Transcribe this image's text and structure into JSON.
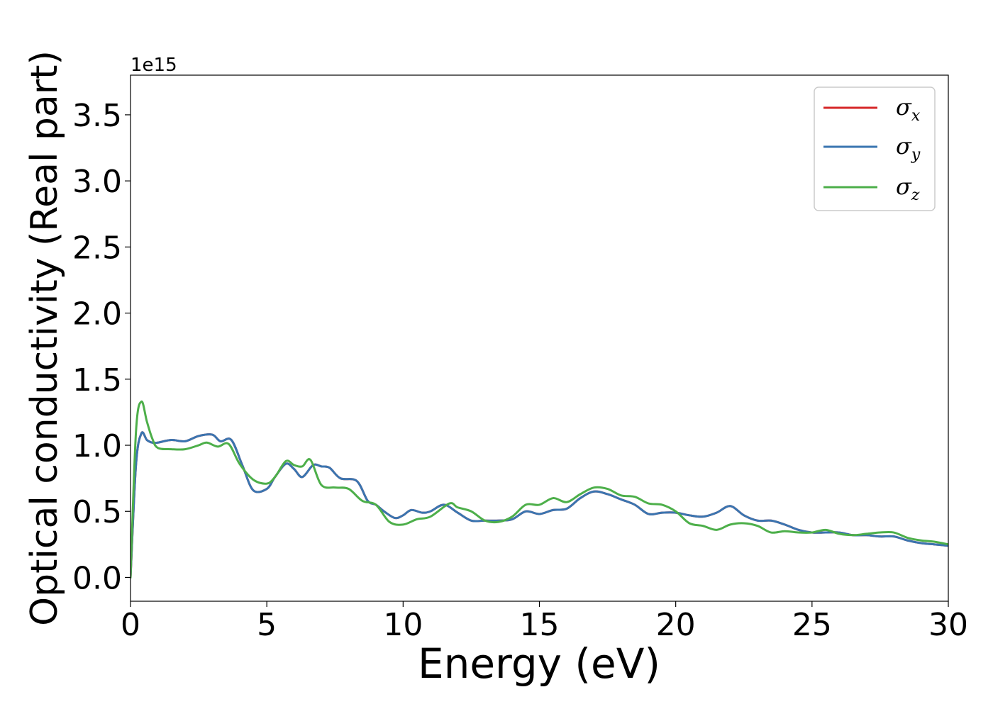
{
  "chart_data": {
    "type": "line",
    "title": "",
    "xlabel": "Energy (eV)",
    "ylabel": "Optical conductivity (Real part)",
    "y_offset_label": "1e15",
    "xlim": [
      0,
      30
    ],
    "ylim": [
      -0.18,
      3.8
    ],
    "grid": false,
    "legend_position": "top-right",
    "x_ticks": [
      0,
      5,
      10,
      15,
      20,
      25,
      30
    ],
    "x_tick_labels": [
      "0",
      "5",
      "10",
      "15",
      "20",
      "25",
      "30"
    ],
    "y_ticks": [
      0.0,
      0.5,
      1.0,
      1.5,
      2.0,
      2.5,
      3.0,
      3.5
    ],
    "y_tick_labels": [
      "0.0",
      "0.5",
      "1.0",
      "1.5",
      "2.0",
      "2.5",
      "3.0",
      "3.5"
    ],
    "series": [
      {
        "name": "σx",
        "symbol": "σ",
        "subscript": "x",
        "color": "#d62728",
        "x": [
          0,
          0.2,
          0.4,
          0.6,
          0.8,
          1,
          1.5,
          2,
          2.5,
          3,
          3.3,
          3.7,
          4.1,
          4.5,
          5,
          5.3,
          5.7,
          6,
          6.3,
          6.7,
          7,
          7.3,
          7.7,
          8.3,
          8.7,
          9,
          9.3,
          9.7,
          10,
          10.3,
          10.7,
          11,
          11.5,
          12,
          12.5,
          13,
          13.5,
          14,
          14.5,
          15,
          15.5,
          16,
          16.5,
          17,
          17.5,
          18,
          18.5,
          19,
          19.5,
          20,
          20.5,
          21,
          21.5,
          22,
          22.5,
          23,
          23.5,
          24,
          24.5,
          25,
          25.5,
          26,
          26.5,
          27,
          27.5,
          28,
          28.5,
          29,
          29.5,
          30
        ],
        "y": [
          0,
          0.85,
          1.09,
          1.04,
          1.02,
          1.02,
          1.04,
          1.03,
          1.07,
          1.08,
          1.03,
          1.04,
          0.85,
          0.66,
          0.67,
          0.76,
          0.86,
          0.82,
          0.76,
          0.85,
          0.84,
          0.83,
          0.75,
          0.73,
          0.58,
          0.55,
          0.5,
          0.45,
          0.47,
          0.51,
          0.49,
          0.5,
          0.55,
          0.49,
          0.43,
          0.43,
          0.43,
          0.44,
          0.5,
          0.48,
          0.51,
          0.52,
          0.6,
          0.65,
          0.63,
          0.59,
          0.55,
          0.48,
          0.49,
          0.49,
          0.47,
          0.46,
          0.49,
          0.54,
          0.47,
          0.43,
          0.43,
          0.4,
          0.36,
          0.34,
          0.34,
          0.34,
          0.32,
          0.32,
          0.31,
          0.31,
          0.28,
          0.26,
          0.25,
          0.24
        ]
      },
      {
        "name": "σy",
        "symbol": "σ",
        "subscript": "y",
        "color": "#3a75b0",
        "x": [
          0,
          0.2,
          0.4,
          0.6,
          0.8,
          1,
          1.5,
          2,
          2.5,
          3,
          3.3,
          3.7,
          4.1,
          4.5,
          5,
          5.3,
          5.7,
          6,
          6.3,
          6.7,
          7,
          7.3,
          7.7,
          8.3,
          8.7,
          9,
          9.3,
          9.7,
          10,
          10.3,
          10.7,
          11,
          11.5,
          12,
          12.5,
          13,
          13.5,
          14,
          14.5,
          15,
          15.5,
          16,
          16.5,
          17,
          17.5,
          18,
          18.5,
          19,
          19.5,
          20,
          20.5,
          21,
          21.5,
          22,
          22.5,
          23,
          23.5,
          24,
          24.5,
          25,
          25.5,
          26,
          26.5,
          27,
          27.5,
          28,
          28.5,
          29,
          29.5,
          30
        ],
        "y": [
          0,
          0.85,
          1.09,
          1.04,
          1.02,
          1.02,
          1.04,
          1.03,
          1.07,
          1.08,
          1.03,
          1.04,
          0.85,
          0.66,
          0.67,
          0.76,
          0.86,
          0.82,
          0.76,
          0.85,
          0.84,
          0.83,
          0.75,
          0.73,
          0.58,
          0.55,
          0.5,
          0.45,
          0.47,
          0.51,
          0.49,
          0.5,
          0.55,
          0.49,
          0.43,
          0.43,
          0.43,
          0.44,
          0.5,
          0.48,
          0.51,
          0.52,
          0.6,
          0.65,
          0.63,
          0.59,
          0.55,
          0.48,
          0.49,
          0.49,
          0.47,
          0.46,
          0.49,
          0.54,
          0.47,
          0.43,
          0.43,
          0.4,
          0.36,
          0.34,
          0.34,
          0.34,
          0.32,
          0.32,
          0.31,
          0.31,
          0.28,
          0.26,
          0.25,
          0.24
        ]
      },
      {
        "name": "σz",
        "symbol": "σ",
        "subscript": "z",
        "color": "#4daf4a",
        "x": [
          0,
          0.2,
          0.4,
          0.6,
          0.8,
          1,
          1.5,
          2,
          2.5,
          2.8,
          3.2,
          3.6,
          4,
          4.5,
          5,
          5.3,
          5.7,
          6,
          6.3,
          6.6,
          7,
          7.5,
          8,
          8.5,
          9,
          9.5,
          10,
          10.5,
          11,
          11.7,
          12,
          12.5,
          13,
          13.5,
          14,
          14.5,
          15,
          15.5,
          16,
          16.5,
          17,
          17.5,
          18,
          18.5,
          19,
          19.5,
          20,
          20.5,
          21,
          21.5,
          22,
          22.5,
          23,
          23.5,
          24,
          24.5,
          25,
          25.5,
          26,
          26.5,
          27,
          27.5,
          28,
          28.5,
          29,
          29.5,
          30
        ],
        "y": [
          0,
          1.1,
          1.33,
          1.18,
          1.05,
          0.98,
          0.97,
          0.97,
          1.0,
          1.02,
          0.99,
          1.01,
          0.86,
          0.74,
          0.71,
          0.76,
          0.88,
          0.85,
          0.84,
          0.89,
          0.7,
          0.68,
          0.67,
          0.58,
          0.55,
          0.42,
          0.4,
          0.44,
          0.46,
          0.56,
          0.53,
          0.5,
          0.43,
          0.42,
          0.46,
          0.55,
          0.55,
          0.6,
          0.57,
          0.63,
          0.68,
          0.67,
          0.62,
          0.61,
          0.56,
          0.55,
          0.5,
          0.41,
          0.39,
          0.36,
          0.4,
          0.41,
          0.39,
          0.34,
          0.35,
          0.34,
          0.34,
          0.36,
          0.33,
          0.32,
          0.33,
          0.34,
          0.34,
          0.3,
          0.28,
          0.27,
          0.25
        ]
      }
    ]
  }
}
